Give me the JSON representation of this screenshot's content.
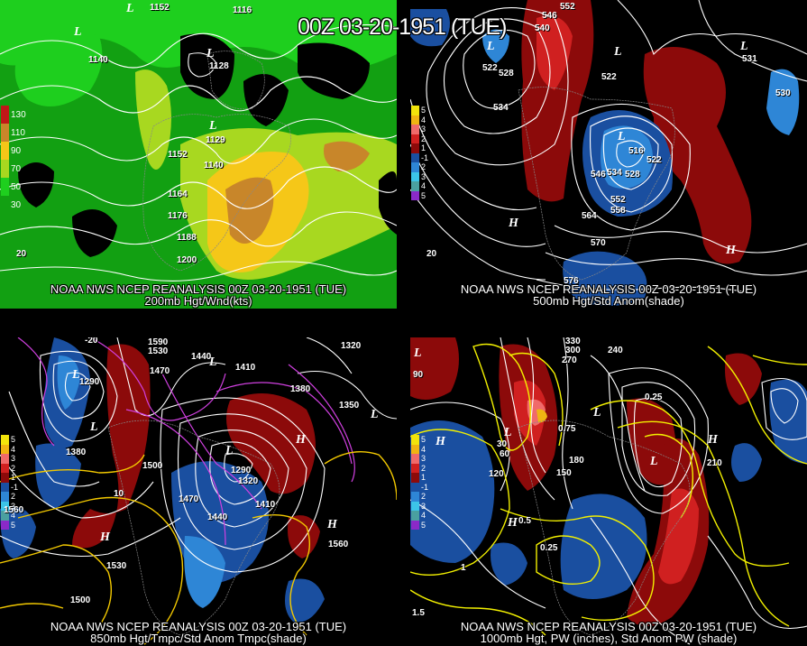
{
  "title": "00Z 03-20-1951 (TUE)",
  "panels": [
    {
      "caption_line1": "NOAA NWS NCEP REANALYSIS 00Z 03-20-1951 (TUE)",
      "caption_line2": "200mb Hgt/Wnd(kts)",
      "legend": [
        {
          "label": "130",
          "color": "#c01818"
        },
        {
          "label": "110",
          "color": "#c8862a"
        },
        {
          "label": "90",
          "color": "#f5c718"
        },
        {
          "label": "70",
          "color": "#a8d820"
        },
        {
          "label": "50",
          "color": "#1ecf1e"
        },
        {
          "label": "30",
          "color": "#12a012"
        }
      ],
      "contour_labels": [
        "1152",
        "1116",
        "1140",
        "1128",
        "1129",
        "1152",
        "1164",
        "1176",
        "1188",
        "1200",
        "1140",
        "20"
      ],
      "lows": [
        "L",
        "L",
        "L",
        "L"
      ]
    },
    {
      "caption_line1": "NOAA NWS NCEP REANALYSIS 00Z 03-20-1951 (TUE)",
      "caption_line2": "500mb Hgt/Std Anom(shade)",
      "legend": [
        {
          "label": "5",
          "color": "#f2e40b"
        },
        {
          "label": "4",
          "color": "#f0b412"
        },
        {
          "label": "3",
          "color": "#f06a6a"
        },
        {
          "label": "2",
          "color": "#d02020"
        },
        {
          "label": "1",
          "color": "#8c0a0a"
        },
        {
          "label": "-1",
          "color": "#1a4fa0"
        },
        {
          "label": "2",
          "color": "#2e86d6"
        },
        {
          "label": "3",
          "color": "#3cc4e8"
        },
        {
          "label": "4",
          "color": "#4aa0a0"
        },
        {
          "label": "5",
          "color": "#8a2ac8"
        }
      ],
      "contour_labels": [
        "552",
        "546",
        "540",
        "522",
        "528",
        "534",
        "516",
        "522",
        "528",
        "534",
        "546",
        "552",
        "558",
        "564",
        "570",
        "576",
        "522",
        "531",
        "530",
        "20"
      ],
      "lows": [
        "L",
        "L",
        "L",
        "L"
      ],
      "highs": [
        "H",
        "H"
      ]
    },
    {
      "caption_line1": "NOAA NWS NCEP REANALYSIS 00Z 03-20-1951 (TUE)",
      "caption_line2": "850mb Hgt/Tmpc/Std Anom Tmpc(shade)",
      "legend": [
        {
          "label": "5",
          "color": "#f2e40b"
        },
        {
          "label": "4",
          "color": "#f0b412"
        },
        {
          "label": "3",
          "color": "#f06a6a"
        },
        {
          "label": "2",
          "color": "#d02020"
        },
        {
          "label": "1",
          "color": "#8c0a0a"
        },
        {
          "label": "-1",
          "color": "#1a4fa0"
        },
        {
          "label": "2",
          "color": "#2e86d6"
        },
        {
          "label": "3",
          "color": "#3cc4e8"
        },
        {
          "label": "4",
          "color": "#4aa0a0"
        },
        {
          "label": "5",
          "color": "#8a2ac8"
        }
      ],
      "contour_labels": [
        "1590",
        "1530",
        "1470",
        "1440",
        "1410",
        "1380",
        "1350",
        "1290",
        "1320",
        "1380",
        "1500",
        "1470",
        "1440",
        "1410",
        "1560",
        "1530",
        "1500",
        "1320",
        "1290",
        "1560",
        "10",
        "-20"
      ],
      "lows": [
        "L",
        "L",
        "L",
        "L",
        "L"
      ],
      "highs": [
        "H",
        "H",
        "H"
      ]
    },
    {
      "caption_line1": "NOAA NWS NCEP REANALYSIS 00Z 03-20-1951 (TUE)",
      "caption_line2": "1000mb Hgt, PW (inches), Std Anom PW (shade)",
      "legend": [
        {
          "label": "5",
          "color": "#f2e40b"
        },
        {
          "label": "4",
          "color": "#f0b412"
        },
        {
          "label": "3",
          "color": "#f06a6a"
        },
        {
          "label": "2",
          "color": "#d02020"
        },
        {
          "label": "1",
          "color": "#8c0a0a"
        },
        {
          "label": "-1",
          "color": "#1a4fa0"
        },
        {
          "label": "2",
          "color": "#2e86d6"
        },
        {
          "label": "3",
          "color": "#3cc4e8"
        },
        {
          "label": "4",
          "color": "#4aa0a0"
        },
        {
          "label": "5",
          "color": "#8a2ac8"
        }
      ],
      "contour_labels": [
        "330",
        "300",
        "270",
        "240",
        "210",
        "180",
        "150",
        "120",
        "90",
        "60",
        "30",
        "0.25",
        "0.5",
        "0.75",
        "1",
        "1.5",
        "0.25"
      ],
      "lows": [
        "L",
        "L",
        "L",
        "L"
      ],
      "highs": [
        "H",
        "H",
        "H"
      ]
    }
  ]
}
